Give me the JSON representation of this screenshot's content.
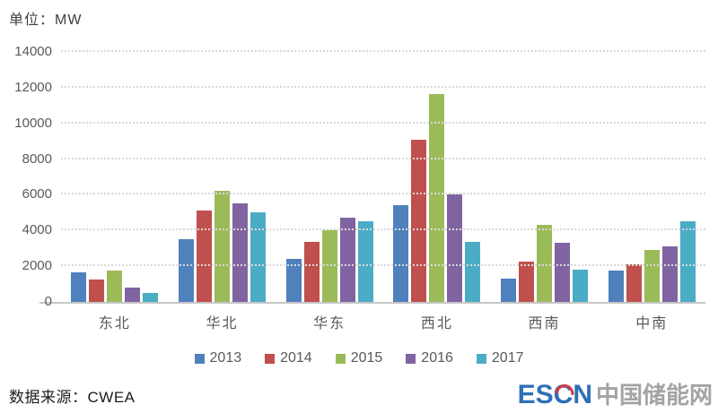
{
  "unit_label": "单位：MW",
  "source_label": "数据来源：CWEA",
  "logo": {
    "escn_prefix": "ES",
    "escn_c": "C",
    "escn_suffix": "N",
    "site_name": "中国储能网",
    "escn_color": "#2e6fb7",
    "accent_color": "#d8383f"
  },
  "chart_data": {
    "type": "bar",
    "title": "",
    "xlabel": "",
    "ylabel": "单位：MW",
    "ylim": [
      0,
      14000
    ],
    "ytick_step": 2000,
    "grid": "horizontal-dotted",
    "legend_position": "bottom",
    "categories": [
      "东北",
      "华北",
      "华东",
      "西北",
      "西南",
      "中南"
    ],
    "series": [
      {
        "name": "2013",
        "color": "#4F81BD",
        "values": [
          1650,
          3500,
          2400,
          5400,
          1300,
          1750
        ]
      },
      {
        "name": "2014",
        "color": "#C0504D",
        "values": [
          1250,
          5100,
          3350,
          9100,
          2250,
          2100
        ]
      },
      {
        "name": "2015",
        "color": "#9BBB59",
        "values": [
          1750,
          6200,
          4000,
          11650,
          4300,
          2900
        ]
      },
      {
        "name": "2016",
        "color": "#8064A2",
        "values": [
          800,
          5500,
          4700,
          6000,
          3300,
          3100
        ]
      },
      {
        "name": "2017",
        "color": "#4BACC6",
        "values": [
          500,
          5000,
          4500,
          3350,
          1800,
          4500
        ]
      }
    ]
  }
}
